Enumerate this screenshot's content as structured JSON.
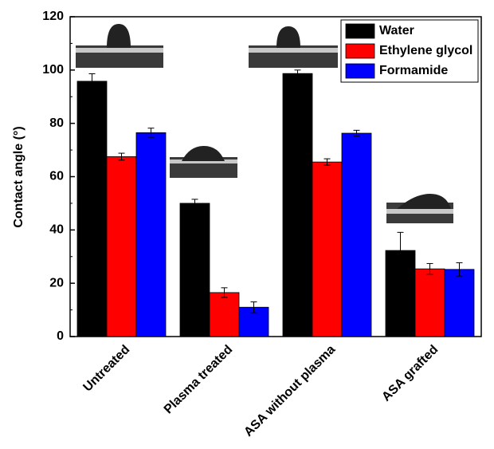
{
  "chart_data": {
    "type": "bar",
    "categories": [
      "Untreated",
      "Plasma treated",
      "ASA without plasma",
      "ASA grafted"
    ],
    "series": [
      {
        "name": "Water",
        "color": "#000000",
        "values": [
          95.8,
          50,
          98.7,
          32.3
        ],
        "errors": [
          2.8,
          1.5,
          1.3,
          6.8
        ]
      },
      {
        "name": "Ethylene glycol",
        "color": "#ff0000",
        "values": [
          67.5,
          16.5,
          65.5,
          25.4
        ],
        "errors": [
          1.3,
          1.8,
          1.2,
          2.0
        ]
      },
      {
        "name": "Formamide",
        "color": "#0000ff",
        "values": [
          76.5,
          11,
          76.3,
          25.2
        ],
        "errors": [
          1.7,
          2.0,
          1.1,
          2.5
        ]
      }
    ],
    "y_label": "Contact angle (°)",
    "ylim": [
      0,
      120
    ],
    "yticks": [
      0,
      20,
      40,
      60,
      80,
      100,
      120
    ],
    "legend": "top-right"
  }
}
